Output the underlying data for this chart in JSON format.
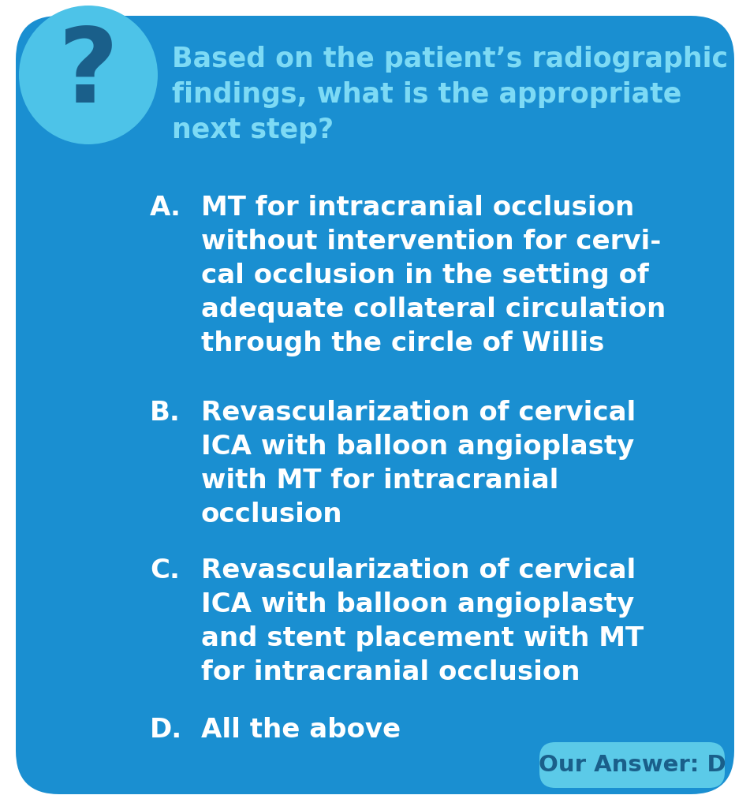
{
  "bg_color": "#FFFFFF",
  "card_color": "#1A8FD1",
  "circle_color": "#4DC3E8",
  "question_mark_color": "#1A5F8A",
  "answer_box_color": "#5BCAE8",
  "question_text": "Based on the patient’s radiographic\nfindings, what is the appropriate\nnext step?",
  "question_color": "#7DDAF5",
  "answer_a_label": "A.",
  "answer_a_text": "MT for intracranial occlusion\nwithout intervention for cervi-\ncal occlusion in the setting of\nadequate collateral circulation\nthrough the circle of Willis",
  "answer_b_label": "B.",
  "answer_b_text": "Revascularization of cervical\nICA with balloon angioplasty\nwith MT for intracranial\nocclusion",
  "answer_c_label": "C.",
  "answer_c_text": "Revascularization of cervical\nICA with balloon angioplasty\nand stent placement with MT\nfor intracranial occlusion",
  "answer_d_label": "D.",
  "answer_d_text": "All the above",
  "answer_color": "#FFFFFF",
  "our_answer_text": "Our Answer: D",
  "our_answer_color": "#1A5F8A",
  "figsize": [
    9.51,
    10.27
  ],
  "dpi": 100
}
